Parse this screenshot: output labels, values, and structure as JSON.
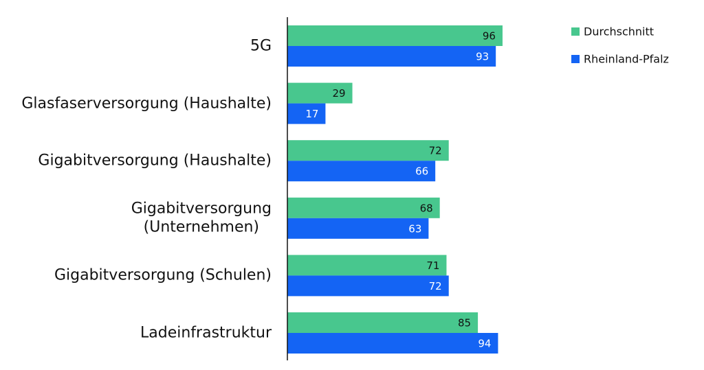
{
  "chart_data": {
    "type": "hbar",
    "categories": [
      "5G",
      "Glasfaserversorgung (Haushalte)",
      "Gigabitversorgung (Haushalte)",
      "Gigabitversorgung\n(Unternehmen)",
      "Gigabitversorgung (Schulen)",
      "Ladeinfrastruktur"
    ],
    "series": [
      {
        "name": "Durchschnitt",
        "color": "#48c78e",
        "label_color": "#111111",
        "values": [
          96,
          29,
          72,
          68,
          71,
          85
        ]
      },
      {
        "name": "Rheinland-Pfalz",
        "color": "#1464f4",
        "label_color": "#ffffff",
        "values": [
          93,
          17,
          66,
          63,
          72,
          94
        ]
      }
    ],
    "xlim": [
      0,
      100
    ],
    "legend": "top-right"
  }
}
